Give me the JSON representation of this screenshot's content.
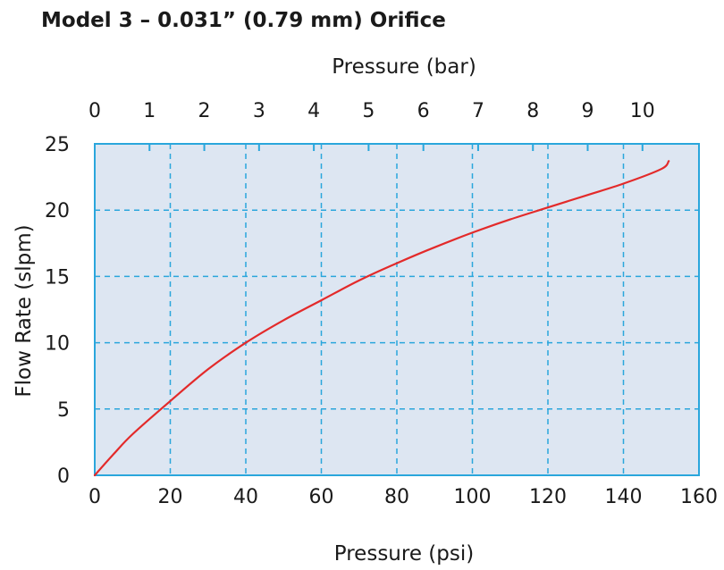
{
  "chart_data": {
    "type": "line",
    "title": "Model 3 – 0.031” (0.79 mm) Orifice",
    "xlabel": "Pressure (psi)",
    "x2label": "Pressure (bar)",
    "ylabel": "Flow Rate (slpm)",
    "xlim": [
      0,
      160
    ],
    "ylim": [
      0,
      25
    ],
    "xticks": [
      0,
      20,
      40,
      60,
      80,
      100,
      120,
      140,
      160
    ],
    "yticks": [
      0,
      5,
      10,
      15,
      20,
      25
    ],
    "x2ticks": [
      0,
      1,
      2,
      3,
      4,
      5,
      6,
      7,
      8,
      9,
      10
    ],
    "grid": true,
    "series": [
      {
        "color": "#e32a2a",
        "x": [
          0,
          5,
          10,
          20,
          30,
          40,
          50,
          60,
          70,
          80,
          90,
          100,
          110,
          120,
          130,
          140,
          150,
          152
        ],
        "y": [
          0,
          1.6,
          3.1,
          5.6,
          8.0,
          10.0,
          11.7,
          13.2,
          14.7,
          16.0,
          17.2,
          18.3,
          19.3,
          20.2,
          21.1,
          22.0,
          23.1,
          23.7
        ]
      }
    ]
  },
  "colors": {
    "plot_background": "#dde6f2",
    "frame": "#2aa6dc",
    "grid": "#2aa6dc"
  }
}
